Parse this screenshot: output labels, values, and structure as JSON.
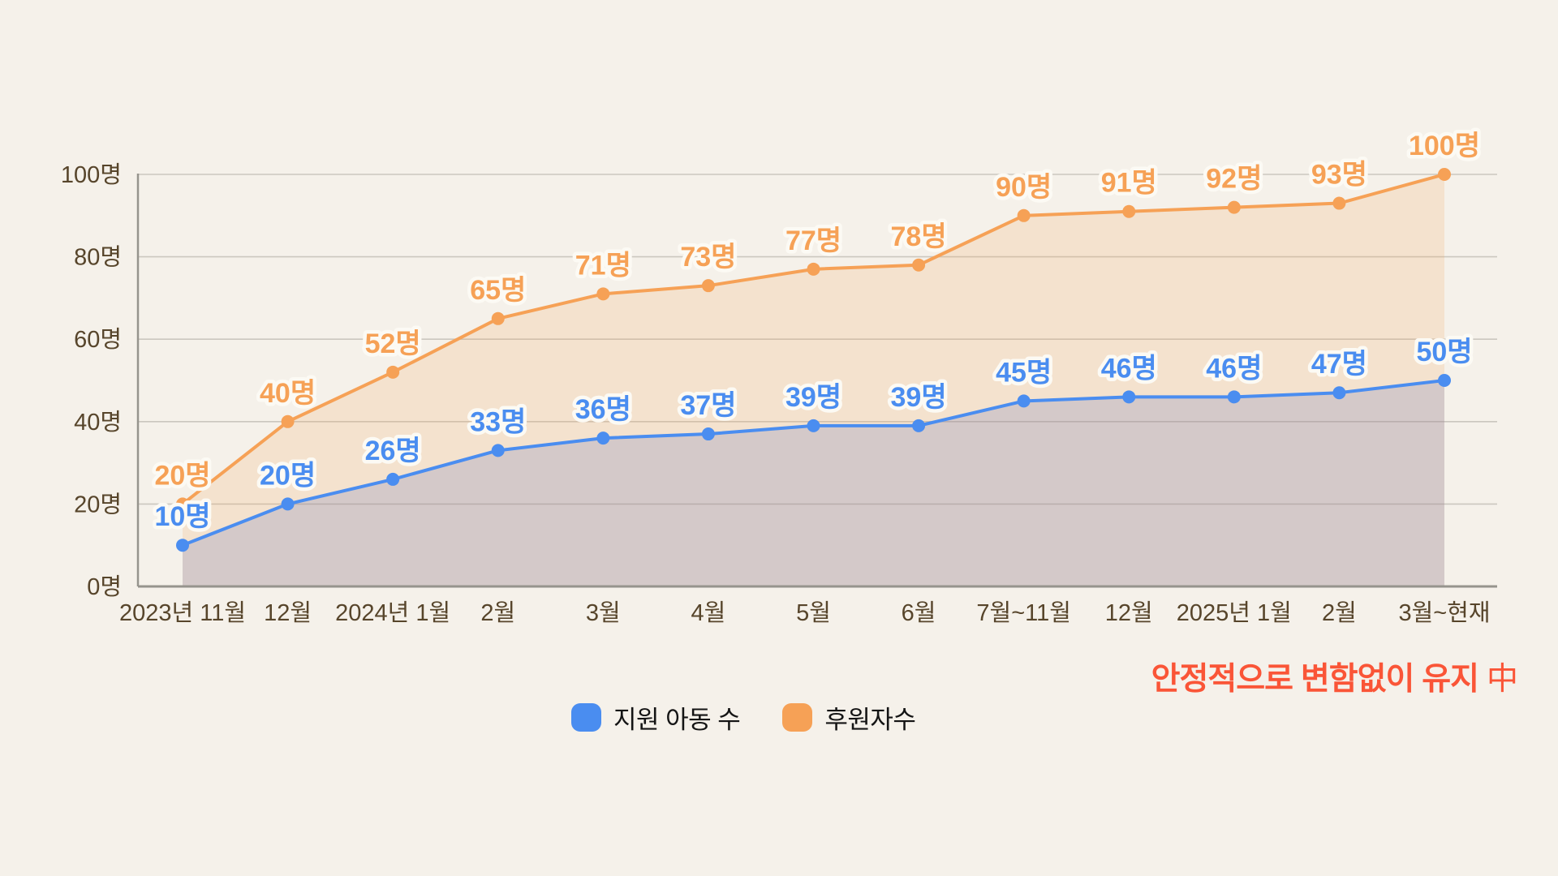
{
  "chart_data": {
    "type": "line",
    "title": "",
    "unit": "명",
    "categories": [
      "2023년 11월",
      "12월",
      "2024년 1월",
      "2월",
      "3월",
      "4월",
      "5월",
      "6월",
      "7월~11월",
      "12월",
      "2025년 1월",
      "2월",
      "3월~현재"
    ],
    "series": [
      {
        "name": "지원 아동 수",
        "color": "#4A8DF0",
        "area_fill": "rgba(100,115,185,0.22)",
        "values": [
          10,
          20,
          26,
          33,
          36,
          37,
          39,
          39,
          45,
          46,
          46,
          47,
          50
        ]
      },
      {
        "name": "후원자수",
        "color": "#F6A156",
        "area_fill": "rgba(246,161,85,0.18)",
        "values": [
          20,
          40,
          52,
          65,
          71,
          73,
          77,
          78,
          90,
          91,
          92,
          93,
          100
        ]
      }
    ],
    "y_ticks": [
      0,
      20,
      40,
      60,
      80,
      100
    ],
    "ylim": [
      0,
      100
    ],
    "grid": true,
    "legend_position": "bottom",
    "colors": {
      "background": "#F5F1EA",
      "gridline": "#CBC7BF",
      "axis_line": "#96948D",
      "tick_text": "#57452B",
      "label_halo": "#FCFAF4"
    }
  },
  "legend": {
    "items": [
      {
        "label": "지원 아동 수",
        "color": "#4A8DF0"
      },
      {
        "label": "후원자수",
        "color": "#F6A156"
      }
    ]
  },
  "annotation": {
    "bold": "안정적으로 변함없이 유지",
    "suffix": "中",
    "color": "#FA5537"
  }
}
